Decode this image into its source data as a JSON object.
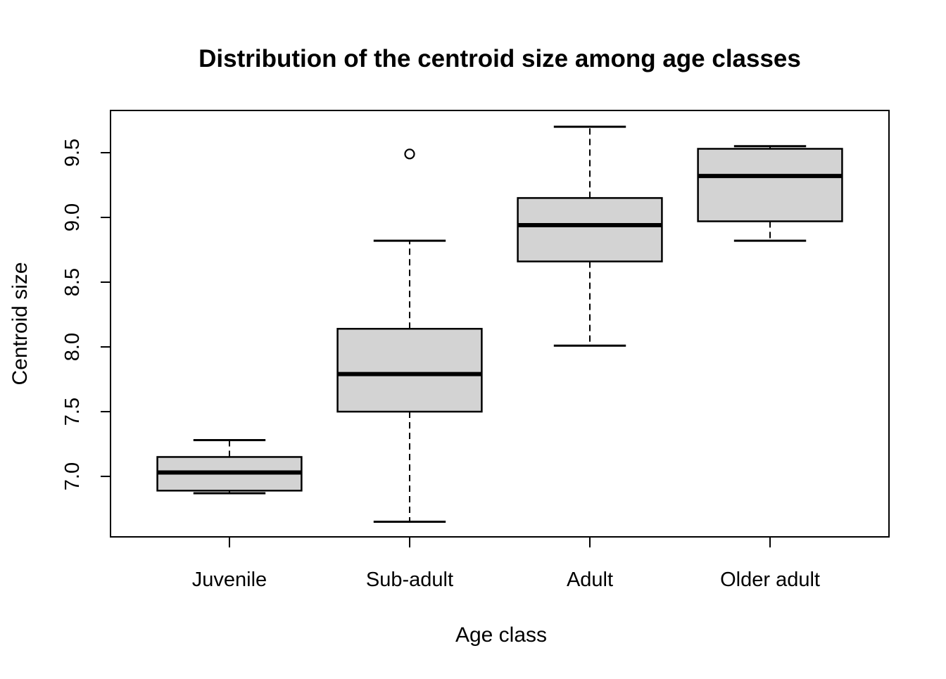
{
  "figure": {
    "background": "#ffffff"
  },
  "chart_data": {
    "type": "boxplot",
    "title": "Distribution of the centroid size among age classes",
    "xlabel": "Age class",
    "ylabel": "Centroid size",
    "categories": [
      "Juvenile",
      "Sub-adult",
      "Adult",
      "Older adult"
    ],
    "series": [
      {
        "name": "Juvenile",
        "whisker_low": 6.87,
        "q1": 6.89,
        "median": 7.03,
        "q3": 7.15,
        "whisker_high": 7.28,
        "outliers": []
      },
      {
        "name": "Sub-adult",
        "whisker_low": 6.65,
        "q1": 7.5,
        "median": 7.79,
        "q3": 8.14,
        "whisker_high": 8.82,
        "outliers": [
          9.49
        ]
      },
      {
        "name": "Adult",
        "whisker_low": 8.01,
        "q1": 8.66,
        "median": 8.94,
        "q3": 9.15,
        "whisker_high": 9.7,
        "outliers": []
      },
      {
        "name": "Older adult",
        "whisker_low": 8.82,
        "q1": 8.97,
        "median": 9.32,
        "q3": 9.53,
        "whisker_high": 9.55,
        "outliers": []
      }
    ],
    "y_ticks": [
      {
        "value": 7.0,
        "label": "7.0"
      },
      {
        "value": 7.5,
        "label": "7.5"
      },
      {
        "value": 8.0,
        "label": "8.0"
      },
      {
        "value": 8.5,
        "label": "8.5"
      },
      {
        "value": 9.0,
        "label": "9.0"
      },
      {
        "value": 9.5,
        "label": "9.5"
      }
    ],
    "axes": {
      "x_range": [
        0.34,
        4.66
      ],
      "y_range": [
        6.533,
        9.826
      ],
      "grid": false,
      "legend": "none"
    },
    "style": {
      "box_fill": "#d3d3d3",
      "line_color": "#000000",
      "background": "#ffffff",
      "box_width_units": 0.8,
      "cap_width_units": 0.4,
      "whisker_linestyle": "dashed"
    }
  }
}
